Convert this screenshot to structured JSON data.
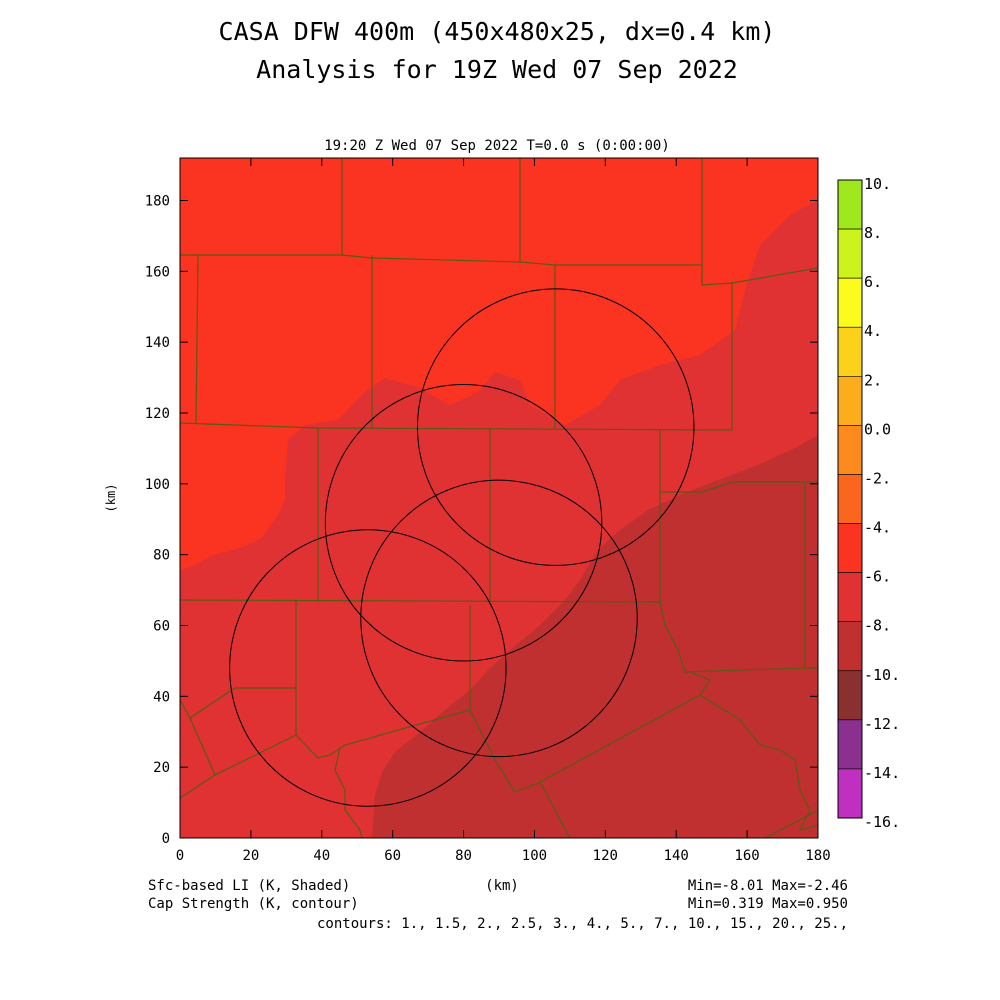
{
  "header": {
    "title_line1": "CASA DFW 400m (450x480x25, dx=0.4 km)",
    "title_line2": "Analysis for 19Z Wed 07 Sep 2022",
    "time_label": "19:20 Z Wed 07 Sep 2022   T=0.0 s (0:00:00)"
  },
  "footer": {
    "shaded_label": "Sfc-based LI (K, Shaded)",
    "contour_label": "Cap Strength (K, contour)",
    "xunit": "(km)",
    "shaded_minmax": "Min=-8.01 Max=-2.46",
    "contour_minmax": "Min=0.319 Max=0.950",
    "contours": "contours: 1., 1.5, 2., 2.5, 3., 4., 5., 7., 10., 15., 20., 25.,"
  },
  "chart_data": {
    "type": "heatmap",
    "title": "CASA DFW 400m (450x480x25, dx=0.4 km)",
    "subtitle": "Analysis for 19Z Wed 07 Sep 2022",
    "xlabel": "(km)",
    "ylabel": "(km)",
    "xlim": [
      0,
      180
    ],
    "ylim": [
      0,
      192
    ],
    "xticks": [
      0,
      20,
      40,
      60,
      80,
      100,
      120,
      140,
      160,
      180
    ],
    "yticks": [
      0,
      20,
      40,
      60,
      80,
      100,
      120,
      140,
      160,
      180
    ],
    "field": "Sfc-based LI (K, Shaded)",
    "field_min": -8.01,
    "field_max": -2.46,
    "contour_field": "Cap Strength (K, contour)",
    "contour_min": 0.319,
    "contour_max": 0.95,
    "colorbar": [
      {
        "label": "10.",
        "color": "#9fe81e"
      },
      {
        "label": "8.",
        "color": "#ccf31d"
      },
      {
        "label": "6.",
        "color": "#fbfb1e"
      },
      {
        "label": "4.",
        "color": "#fcd11c"
      },
      {
        "label": "2.",
        "color": "#fcad1c"
      },
      {
        "label": "0.0",
        "color": "#fc8a1c"
      },
      {
        "label": "-2.",
        "color": "#fa661e"
      },
      {
        "label": "-4.",
        "color": "#fa3420"
      },
      {
        "label": "-6.",
        "color": "#e03232"
      },
      {
        "label": "-8.",
        "color": "#c03030"
      },
      {
        "label": "-10.",
        "color": "#8a3030"
      },
      {
        "label": "-12.",
        "color": "#8c3090"
      },
      {
        "label": "-14.",
        "color": "#c030c0"
      },
      {
        "label": "-16.",
        "color": "#d83ee0"
      }
    ],
    "radar_rings_km": [
      {
        "cx": 106,
        "cy": 116,
        "r": 39
      },
      {
        "cx": 80,
        "cy": 89,
        "r": 39
      },
      {
        "cx": 90,
        "cy": 62,
        "r": 39
      },
      {
        "cx": 53,
        "cy": 48,
        "r": 39
      }
    ],
    "shading_regions": [
      {
        "name": "li-band-2-to-4",
        "color": "#fa3420"
      },
      {
        "name": "li-band-4-to-6",
        "color": "#e03232"
      },
      {
        "name": "li-band-6-to-8",
        "color": "#c03030"
      }
    ],
    "county_line_color": "#5a5a14",
    "ring_color": "#000000"
  }
}
